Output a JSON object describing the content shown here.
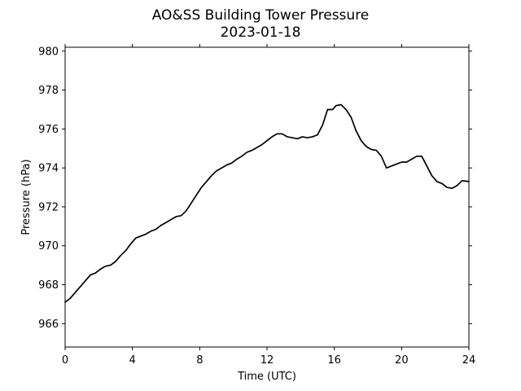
{
  "chart_data": {
    "type": "line",
    "title": "AO&SS Building Tower Pressure",
    "subtitle": "2023-01-18",
    "xlabel": "Time (UTC)",
    "ylabel": "Pressure (hPa)",
    "xlim": [
      0,
      24
    ],
    "ylim": [
      964.8,
      980.2
    ],
    "x_ticks": [
      0,
      4,
      8,
      12,
      16,
      20,
      24
    ],
    "y_ticks": [
      966,
      968,
      970,
      972,
      974,
      976,
      978,
      980
    ],
    "grid": false,
    "line_color": "#000000",
    "series": [
      {
        "x": [
          0,
          0.3,
          0.6,
          0.9,
          1.2,
          1.5,
          1.8,
          2.1,
          2.4,
          2.7,
          3.0,
          3.3,
          3.6,
          3.9,
          4.2,
          4.5,
          4.8,
          5.1,
          5.4,
          5.7,
          6.0,
          6.3,
          6.6,
          6.9,
          7.2,
          7.5,
          7.8,
          8.1,
          8.4,
          8.7,
          9.0,
          9.3,
          9.6,
          9.9,
          10.2,
          10.5,
          10.8,
          11.1,
          11.4,
          11.7,
          12.0,
          12.3,
          12.6,
          12.9,
          13.2,
          13.5,
          13.8,
          14.1,
          14.4,
          14.7,
          15.0,
          15.3,
          15.6,
          15.9,
          16.1,
          16.4,
          16.7,
          17.0,
          17.3,
          17.6,
          17.9,
          18.2,
          18.5,
          18.8,
          19.1,
          19.4,
          19.7,
          20.0,
          20.3,
          20.6,
          20.9,
          21.2,
          21.5,
          21.8,
          22.1,
          22.4,
          22.7,
          23.0,
          23.3,
          23.6,
          24.0
        ],
        "y": [
          967.1,
          967.3,
          967.6,
          967.9,
          968.2,
          968.5,
          968.6,
          968.8,
          968.95,
          969.0,
          969.2,
          969.5,
          969.75,
          970.1,
          970.4,
          970.5,
          970.6,
          970.75,
          970.85,
          971.05,
          971.2,
          971.35,
          971.5,
          971.55,
          971.8,
          972.2,
          972.6,
          973.0,
          973.3,
          973.6,
          973.85,
          974.0,
          974.15,
          974.25,
          974.45,
          974.6,
          974.8,
          974.9,
          975.05,
          975.2,
          975.4,
          975.6,
          975.75,
          975.75,
          975.6,
          975.55,
          975.5,
          975.6,
          975.55,
          975.6,
          975.7,
          976.2,
          977.0,
          977.0,
          977.2,
          977.25,
          977.0,
          976.6,
          975.9,
          975.4,
          975.1,
          974.95,
          974.9,
          974.6,
          974.0,
          974.1,
          974.2,
          974.3,
          974.3,
          974.45,
          974.6,
          974.6,
          974.1,
          973.6,
          973.3,
          973.2,
          973.0,
          972.95,
          973.1,
          973.35,
          973.3
        ]
      }
    ]
  }
}
